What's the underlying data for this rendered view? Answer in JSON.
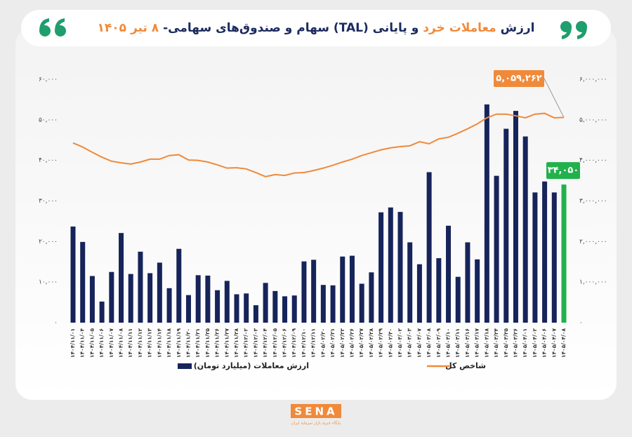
{
  "chart_data": {
    "type": "bar_line",
    "title": [
      "ارزش ",
      "معاملات خرد",
      " و پایانی (TAL) سهام و صندوق‌های سهامی- ",
      "۸ تیر ۱۴۰۵"
    ],
    "title_colors": [
      "#1b2a5e",
      "#f08a3a",
      "#1b2a5e",
      "#f08a3a"
    ],
    "categories": [
      "۱۴۰۴/۱۱/۰۱",
      "۱۴۰۴/۱۱/۰۴",
      "۱۴۰۴/۱۱/۰۵",
      "۱۴۰۴/۱۱/۰۶",
      "۱۴۰۴/۱۱/۰۷",
      "۱۴۰۴/۱۱/۰۸",
      "۱۴۰۴/۱۱/۱۱",
      "۱۴۰۴/۱۱/۱۲",
      "۱۴۰۴/۱۱/۱۳",
      "۱۴۰۴/۱۱/۱۴",
      "۱۴۰۴/۱۱/۱۸",
      "۱۴۰۴/۱۱/۱۹",
      "۱۴۰۴/۱۱/۲۰",
      "۱۴۰۴/۱۱/۲۱",
      "۱۴۰۴/۱۱/۲۵",
      "۱۴۰۴/۱۱/۲۶",
      "۱۴۰۴/۱۱/۲۷",
      "۱۴۰۴/۱۱/۲۸",
      "۱۴۰۴/۱۲/۰۲",
      "۱۴۰۴/۱۲/۰۳",
      "۱۴۰۴/۱۲/۰۴",
      "۱۴۰۴/۱۲/۰۵",
      "۱۴۰۴/۱۲/۰۶",
      "۱۴۰۴/۱۲/۰۹",
      "۱۴۰۴/۱۲/۱۰",
      "۱۴۰۴/۱۲/۱۱",
      "۱۴۰۵/۰۲/۲۰",
      "۱۴۰۵/۰۲/۲۱",
      "۱۴۰۵/۰۲/۲۲",
      "۱۴۰۵/۰۲/۲۶",
      "۱۴۰۵/۰۲/۲۷",
      "۱۴۰۵/۰۲/۲۸",
      "۱۴۰۵/۰۲/۲۹",
      "۱۴۰۵/۰۲/۳۰",
      "۱۴۰۵/۰۳/۰۲",
      "۱۴۰۵/۰۳/۰۳",
      "۱۴۰۵/۰۳/۰۷",
      "۱۴۰۵/۰۳/۰۸",
      "۱۴۰۵/۰۳/۰۹",
      "۱۴۰۵/۰۳/۱۰",
      "۱۴۰۵/۰۳/۱۱",
      "۱۴۰۵/۰۳/۱۶",
      "۱۴۰۵/۰۳/۱۷",
      "۱۴۰۵/۰۳/۱۸",
      "۱۴۰۵/۰۳/۲۴",
      "۱۴۰۵/۰۳/۲۵",
      "۱۴۰۵/۰۳/۲۶",
      "۱۴۰۵/۰۴/۰۱",
      "۱۴۰۵/۰۴/۰۲",
      "۱۴۰۵/۰۴/۰۶",
      "۱۴۰۵/۰۴/۰۷",
      "۱۴۰۵/۰۴/۰۸"
    ],
    "series": [
      {
        "name": "ارزش معاملات (میلیارد تومان)",
        "kind": "bar",
        "color": "#16245a",
        "label_color": "#22b14c",
        "values": [
          23700,
          19900,
          11500,
          5200,
          12500,
          22100,
          12000,
          17500,
          12200,
          14800,
          8500,
          18200,
          6800,
          11700,
          11600,
          8000,
          10300,
          7000,
          7200,
          4300,
          9800,
          7800,
          6500,
          6700,
          15100,
          15500,
          9300,
          9200,
          16300,
          16500,
          9600,
          12400,
          27200,
          28400,
          27300,
          19800,
          14400,
          37100,
          15900,
          23900,
          11300,
          19800,
          15600,
          53800,
          36200,
          47800,
          52200,
          45900,
          32100,
          34800,
          32100,
          34050
        ],
        "value_labels": [
          null,
          null,
          null,
          null,
          null,
          null,
          null,
          null,
          null,
          null,
          null,
          null,
          null,
          null,
          null,
          null,
          null,
          null,
          null,
          null,
          null,
          null,
          null,
          null,
          null,
          null,
          null,
          null,
          null,
          null,
          null,
          null,
          null,
          null,
          null,
          null,
          null,
          null,
          null,
          null,
          null,
          null,
          null,
          null,
          null,
          null,
          null,
          null,
          null,
          null,
          null,
          "۳۴,۰۵۰"
        ]
      },
      {
        "name": "شاخص کل",
        "kind": "line",
        "axis": "y2",
        "color": "#f08a3a",
        "values": [
          4430000,
          4330000,
          4200000,
          4080000,
          3980000,
          3940000,
          3910000,
          3960000,
          4030000,
          4030000,
          4120000,
          4140000,
          4010000,
          4000000,
          3960000,
          3890000,
          3810000,
          3820000,
          3790000,
          3700000,
          3600000,
          3650000,
          3630000,
          3690000,
          3700000,
          3750000,
          3810000,
          3880000,
          3960000,
          4030000,
          4120000,
          4190000,
          4260000,
          4310000,
          4340000,
          4360000,
          4460000,
          4410000,
          4530000,
          4570000,
          4670000,
          4780000,
          4900000,
          5050000,
          5140000,
          5140000,
          5100000,
          5050000,
          5140000,
          5160000,
          5050000,
          5059262
        ],
        "value_labels": [
          null,
          null,
          null,
          null,
          null,
          null,
          null,
          null,
          null,
          null,
          null,
          null,
          null,
          null,
          null,
          null,
          null,
          null,
          null,
          null,
          null,
          null,
          null,
          null,
          null,
          null,
          null,
          null,
          null,
          null,
          null,
          null,
          null,
          null,
          null,
          null,
          null,
          null,
          null,
          null,
          null,
          null,
          null,
          null,
          null,
          null,
          null,
          null,
          null,
          null,
          null,
          "۵,۰۵۹,۲۶۲"
        ]
      }
    ],
    "ylim": [
      0,
      60000
    ],
    "yticks": [
      {
        "value": 0,
        "label": "۰"
      },
      {
        "value": 10000,
        "label": "۱۰,۰۰۰"
      },
      {
        "value": 20000,
        "label": "۲۰,۰۰۰"
      },
      {
        "value": 30000,
        "label": "۳۰,۰۰۰"
      },
      {
        "value": 40000,
        "label": "۴۰,۰۰۰"
      },
      {
        "value": 50000,
        "label": "۵۰,۰۰۰"
      },
      {
        "value": 60000,
        "label": "۶۰,۰۰۰"
      }
    ],
    "y2lim": [
      0,
      6000000
    ],
    "y2ticks": [
      {
        "value": 0,
        "label": "۰"
      },
      {
        "value": 1000000,
        "label": "۱,۰۰۰,۰۰۰"
      },
      {
        "value": 2000000,
        "label": "۲,۰۰۰,۰۰۰"
      },
      {
        "value": 3000000,
        "label": "۳,۰۰۰,۰۰۰"
      },
      {
        "value": 4000000,
        "label": "۴,۰۰۰,۰۰۰"
      },
      {
        "value": 5000000,
        "label": "۵,۰۰۰,۰۰۰"
      },
      {
        "value": 6000000,
        "label": "۶,۰۰۰,۰۰۰"
      }
    ],
    "logo": {
      "text": "SENA",
      "tagline": "پایگاه خبری بازار سرمایه ایران"
    }
  }
}
